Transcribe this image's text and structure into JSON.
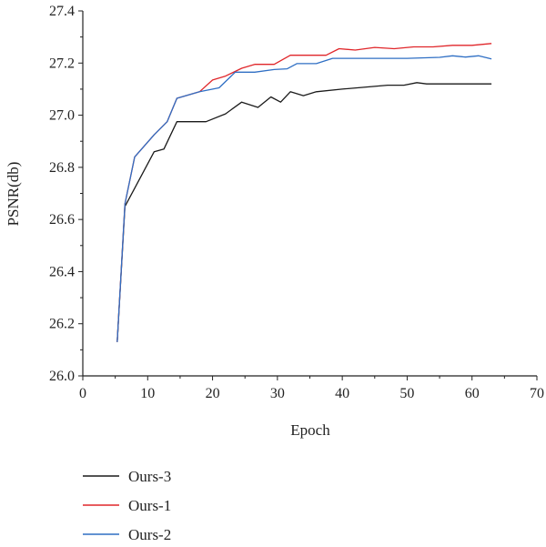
{
  "chart_data": {
    "type": "line",
    "xlabel": "Epoch",
    "ylabel": "PSNR(db)",
    "xlim": [
      0,
      70
    ],
    "ylim": [
      26.0,
      27.4
    ],
    "xticks": [
      0,
      10,
      20,
      30,
      40,
      50,
      60,
      70
    ],
    "yticks": [
      26.0,
      26.2,
      26.4,
      26.6,
      26.8,
      27.0,
      27.2,
      27.4
    ],
    "xtick_labels": [
      "0",
      "10",
      "20",
      "30",
      "40",
      "50",
      "60",
      "70"
    ],
    "ytick_labels": [
      "26.0",
      "26.2",
      "26.4",
      "26.6",
      "26.8",
      "27.0",
      "27.2",
      "27.4"
    ],
    "grid": false,
    "legend_position": "bottom",
    "series": [
      {
        "name": "Ours-3",
        "color": "#1a1a1a",
        "x": [
          5.3,
          6.5,
          8,
          11,
          12.5,
          14.5,
          19,
          22,
          24.5,
          27,
          29,
          30.5,
          32,
          34,
          36,
          40,
          47,
          49.5,
          51.5,
          53,
          56,
          63
        ],
        "y": [
          26.13,
          26.65,
          26.72,
          26.86,
          26.87,
          26.975,
          26.975,
          27.005,
          27.05,
          27.03,
          27.07,
          27.05,
          27.09,
          27.075,
          27.09,
          27.1,
          27.115,
          27.115,
          27.125,
          27.12,
          27.12,
          27.12
        ]
      },
      {
        "name": "Ours-1",
        "color": "#e0262a",
        "x": [
          5.3,
          6.5,
          8,
          11,
          13,
          14.5,
          18,
          20,
          22,
          24.5,
          26.5,
          29.5,
          32,
          34,
          37.5,
          39.5,
          42,
          45,
          48,
          51,
          54,
          57,
          60,
          63
        ],
        "y": [
          26.13,
          26.66,
          26.84,
          26.925,
          26.975,
          27.065,
          27.09,
          27.135,
          27.15,
          27.18,
          27.195,
          27.195,
          27.23,
          27.23,
          27.23,
          27.255,
          27.25,
          27.26,
          27.255,
          27.262,
          27.262,
          27.268,
          27.268,
          27.275
        ]
      },
      {
        "name": "Ours-2",
        "color": "#2f6fc4",
        "x": [
          5.3,
          6.5,
          8,
          11,
          13,
          14.5,
          18,
          21,
          23.5,
          26.5,
          29.5,
          31.5,
          33,
          36,
          38.5,
          42,
          46,
          50,
          55,
          57,
          59,
          61,
          63
        ],
        "y": [
          26.13,
          26.66,
          26.84,
          26.925,
          26.975,
          27.065,
          27.09,
          27.105,
          27.165,
          27.165,
          27.175,
          27.178,
          27.198,
          27.198,
          27.218,
          27.218,
          27.218,
          27.218,
          27.222,
          27.228,
          27.223,
          27.228,
          27.216
        ]
      }
    ]
  }
}
